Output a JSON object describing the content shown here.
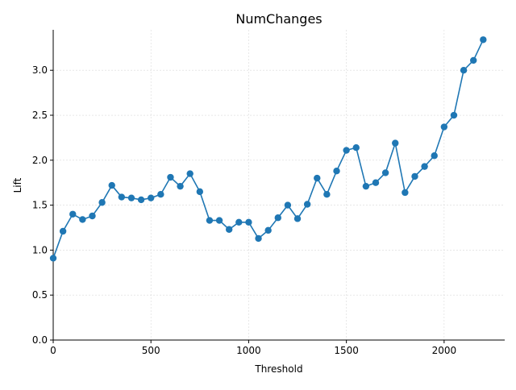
{
  "chart_data": {
    "type": "line",
    "title": "NumChanges",
    "xlabel": "Threshold",
    "ylabel": "Lift",
    "xlim": [
      0,
      2310
    ],
    "ylim": [
      0,
      3.45
    ],
    "x_ticks": [
      0,
      500,
      1000,
      1500,
      2000
    ],
    "x_tick_labels": [
      "0",
      "500",
      "1000",
      "1500",
      "2000"
    ],
    "y_ticks": [
      0,
      0.5,
      1.0,
      1.5,
      2.0,
      2.5,
      3.0
    ],
    "y_tick_labels": [
      "0.0",
      "0.5",
      "1.0",
      "1.5",
      "2.0",
      "2.5",
      "3.0"
    ],
    "grid": true,
    "series": [
      {
        "color": "#1f77b4",
        "marker": "circle",
        "x": [
          0,
          50,
          100,
          150,
          200,
          250,
          300,
          350,
          400,
          450,
          500,
          550,
          600,
          650,
          700,
          750,
          800,
          850,
          900,
          950,
          1000,
          1050,
          1100,
          1150,
          1200,
          1250,
          1300,
          1350,
          1400,
          1450,
          1500,
          1550,
          1600,
          1650,
          1700,
          1750,
          1800,
          1850,
          1900,
          1950,
          2000,
          2050,
          2100,
          2150,
          2200
        ],
        "y": [
          0.91,
          1.21,
          1.4,
          1.34,
          1.38,
          1.53,
          1.72,
          1.59,
          1.58,
          1.56,
          1.58,
          1.62,
          1.81,
          1.71,
          1.85,
          1.65,
          1.33,
          1.33,
          1.23,
          1.31,
          1.31,
          1.13,
          1.22,
          1.36,
          1.5,
          1.35,
          1.51,
          1.8,
          1.62,
          1.88,
          2.11,
          2.14,
          1.71,
          1.75,
          1.86,
          2.19,
          1.64,
          1.82,
          1.93,
          2.05,
          2.37,
          2.5,
          3.0,
          3.11,
          3.34
        ]
      }
    ]
  }
}
